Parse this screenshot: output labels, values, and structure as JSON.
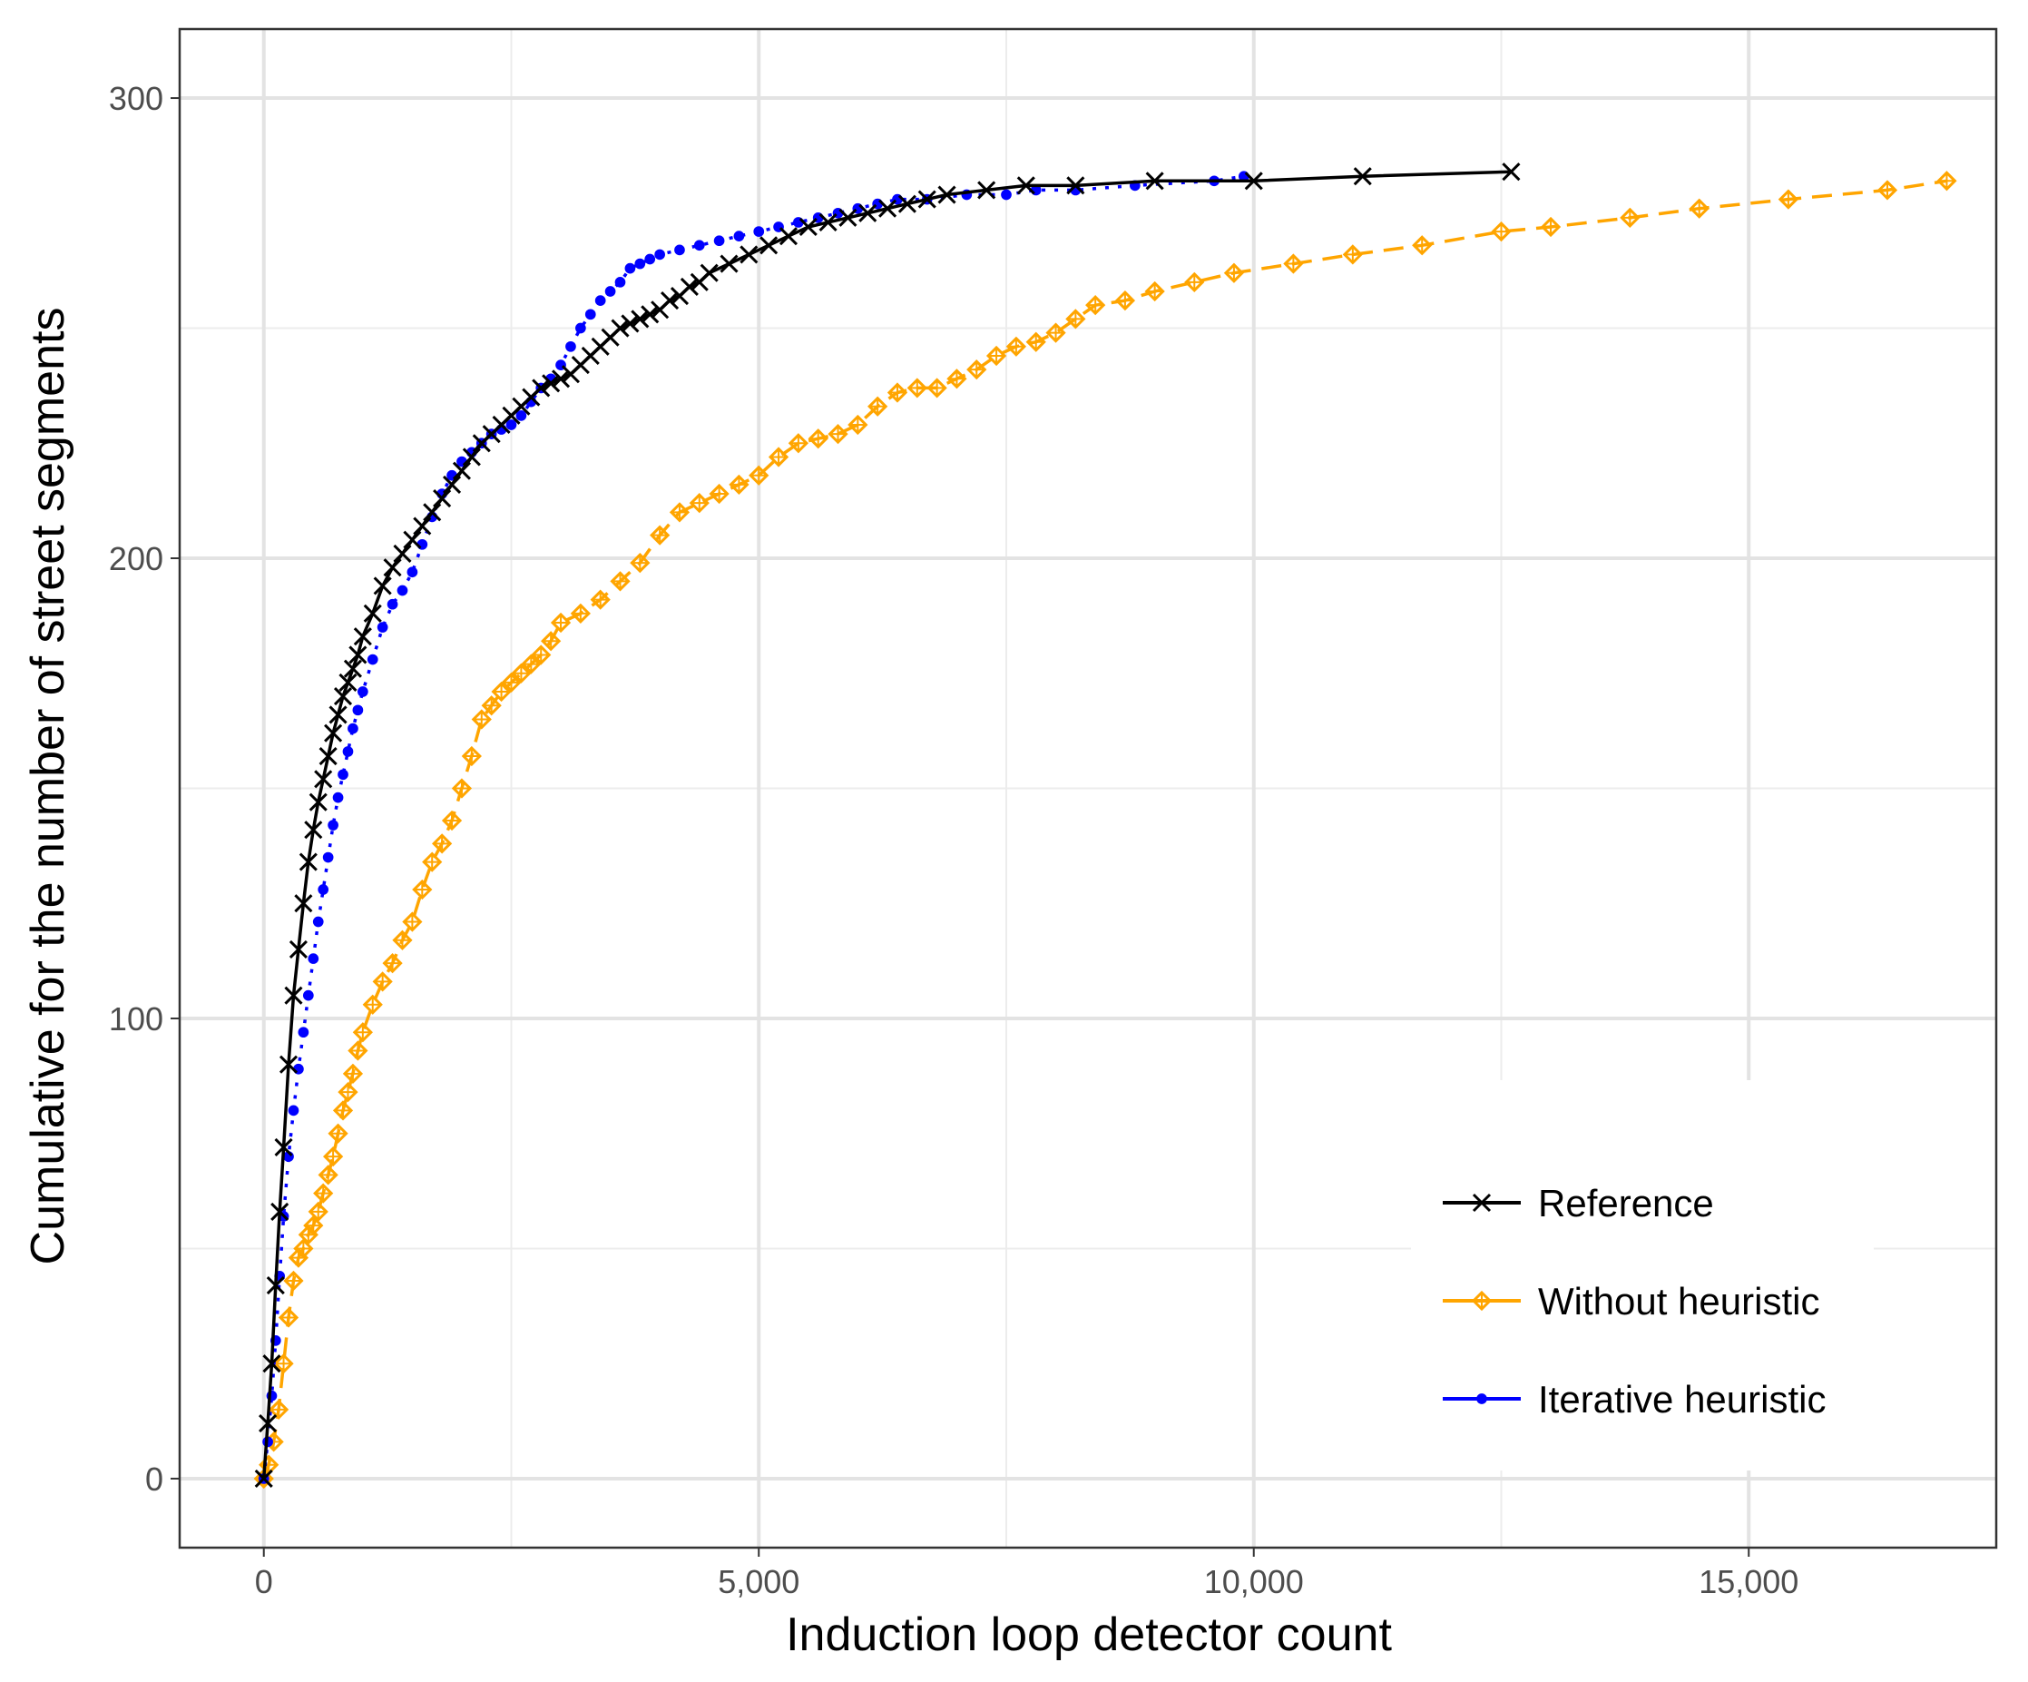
{
  "chart_data": {
    "type": "line",
    "title": "",
    "xlabel": "Induction loop detector count",
    "ylabel": "Cumulative for the number of street segments",
    "xlim": [
      -850,
      17500
    ],
    "ylim": [
      -15,
      315
    ],
    "xticks": [
      0,
      5000,
      10000,
      15000
    ],
    "xtick_labels": [
      "0",
      "5,000",
      "10,000",
      "15,000"
    ],
    "yticks": [
      0,
      100,
      200,
      300
    ],
    "ytick_labels": [
      "0",
      "100",
      "200",
      "300"
    ],
    "grid": true,
    "legend_position": "bottom-right",
    "series": [
      {
        "name": "Reference",
        "color": "#000000",
        "line": "solid",
        "marker": "x",
        "x": [
          0,
          40,
          80,
          120,
          160,
          200,
          250,
          300,
          350,
          400,
          450,
          500,
          550,
          600,
          650,
          700,
          750,
          800,
          850,
          900,
          950,
          1000,
          1100,
          1200,
          1300,
          1400,
          1500,
          1600,
          1700,
          1800,
          1900,
          2000,
          2100,
          2200,
          2300,
          2400,
          2500,
          2600,
          2700,
          2800,
          2900,
          3000,
          3100,
          3200,
          3300,
          3400,
          3500,
          3600,
          3700,
          3800,
          3900,
          4000,
          4100,
          4200,
          4300,
          4400,
          4500,
          4700,
          4900,
          5100,
          5300,
          5500,
          5700,
          5900,
          6100,
          6300,
          6500,
          6700,
          6900,
          7300,
          7700,
          8200,
          9000,
          10000,
          11100,
          12600
        ],
        "y": [
          0,
          12,
          25,
          42,
          58,
          72,
          90,
          105,
          115,
          125,
          134,
          141,
          147,
          152,
          157,
          162,
          166,
          170,
          173,
          176,
          179,
          183,
          188,
          194,
          198,
          201,
          204,
          207,
          210,
          213,
          216,
          219,
          222,
          225,
          227,
          229,
          231,
          233,
          235,
          237,
          238,
          239,
          240,
          242,
          244,
          246,
          248,
          250,
          251,
          252,
          253,
          254,
          256,
          257,
          259,
          260,
          262,
          264,
          266,
          268,
          270,
          272,
          273,
          274,
          275,
          276,
          277,
          278,
          279,
          280,
          281,
          281,
          282,
          282,
          283,
          284
        ]
      },
      {
        "name": "Without heuristic",
        "color": "#FFA500",
        "line": "dashed",
        "marker": "diamond",
        "x": [
          0,
          50,
          100,
          150,
          200,
          250,
          300,
          350,
          400,
          450,
          500,
          550,
          600,
          650,
          700,
          750,
          800,
          850,
          900,
          950,
          1000,
          1100,
          1200,
          1300,
          1400,
          1500,
          1600,
          1700,
          1800,
          1900,
          2000,
          2100,
          2200,
          2300,
          2400,
          2500,
          2600,
          2700,
          2800,
          2900,
          3000,
          3200,
          3400,
          3600,
          3800,
          4000,
          4200,
          4400,
          4600,
          4800,
          5000,
          5200,
          5400,
          5600,
          5800,
          6000,
          6200,
          6400,
          6600,
          6800,
          7000,
          7200,
          7400,
          7600,
          7800,
          8000,
          8200,
          8400,
          8700,
          9000,
          9400,
          9800,
          10400,
          11000,
          11700,
          12500,
          13000,
          13800,
          14500,
          15400,
          16400,
          17000
        ],
        "y": [
          0,
          3,
          8,
          15,
          25,
          35,
          43,
          48,
          50,
          53,
          55,
          58,
          62,
          66,
          70,
          75,
          80,
          84,
          88,
          93,
          97,
          103,
          108,
          112,
          117,
          121,
          128,
          134,
          138,
          143,
          150,
          157,
          165,
          168,
          171,
          173,
          175,
          177,
          179,
          182,
          186,
          188,
          191,
          195,
          199,
          205,
          210,
          212,
          214,
          216,
          218,
          222,
          225,
          226,
          227,
          229,
          233,
          236,
          237,
          237,
          239,
          241,
          244,
          246,
          247,
          249,
          252,
          255,
          256,
          258,
          260,
          262,
          264,
          266,
          268,
          271,
          272,
          274,
          276,
          278,
          280,
          282
        ]
      },
      {
        "name": "Iterative heuristic",
        "color": "#0000FF",
        "line": "dotted",
        "marker": "dot",
        "x": [
          0,
          40,
          80,
          120,
          160,
          200,
          250,
          300,
          350,
          400,
          450,
          500,
          550,
          600,
          650,
          700,
          750,
          800,
          850,
          900,
          950,
          1000,
          1100,
          1200,
          1300,
          1400,
          1500,
          1600,
          1700,
          1800,
          1900,
          2000,
          2100,
          2200,
          2300,
          2400,
          2500,
          2600,
          2700,
          2800,
          2900,
          3000,
          3100,
          3200,
          3300,
          3400,
          3500,
          3600,
          3700,
          3800,
          3900,
          4000,
          4200,
          4400,
          4600,
          4800,
          5000,
          5200,
          5400,
          5600,
          5800,
          6000,
          6200,
          6400,
          6700,
          7100,
          7500,
          7800,
          8200,
          8800,
          9600,
          9900
        ],
        "y": [
          0,
          8,
          18,
          30,
          44,
          57,
          70,
          80,
          89,
          97,
          105,
          113,
          121,
          128,
          135,
          142,
          148,
          153,
          158,
          163,
          167,
          171,
          178,
          185,
          190,
          193,
          197,
          203,
          209,
          214,
          218,
          221,
          223,
          225,
          227,
          228,
          229,
          231,
          234,
          237,
          239,
          242,
          246,
          250,
          253,
          256,
          258,
          260,
          263,
          264,
          265,
          266,
          267,
          268,
          269,
          270,
          271,
          272,
          273,
          274,
          275,
          276,
          277,
          278,
          278,
          279,
          279,
          280,
          280,
          281,
          282,
          283
        ]
      }
    ]
  }
}
